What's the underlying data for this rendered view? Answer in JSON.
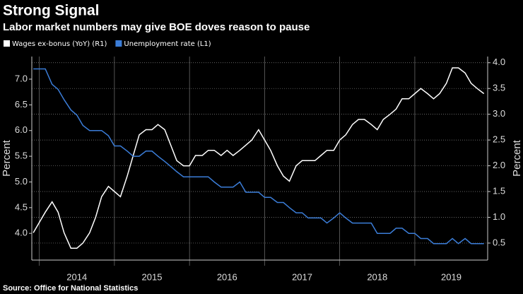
{
  "chart_data": {
    "type": "line",
    "title": "Strong Signal",
    "subtitle": "Labor market numbers may give BOE doves reason to pause",
    "source": "Source: Office for National Statistics",
    "ylabel": "Percent",
    "y2label": "Percent",
    "x": [
      2013.92,
      2014.0,
      2014.08,
      2014.17,
      2014.25,
      2014.33,
      2014.42,
      2014.5,
      2014.58,
      2014.67,
      2014.75,
      2014.83,
      2014.92,
      2015.0,
      2015.08,
      2015.17,
      2015.25,
      2015.33,
      2015.42,
      2015.5,
      2015.58,
      2015.67,
      2015.75,
      2015.83,
      2015.92,
      2016.0,
      2016.08,
      2016.17,
      2016.25,
      2016.33,
      2016.42,
      2016.5,
      2016.58,
      2016.67,
      2016.75,
      2016.83,
      2016.92,
      2017.0,
      2017.08,
      2017.17,
      2017.25,
      2017.33,
      2017.42,
      2017.5,
      2017.58,
      2017.67,
      2017.75,
      2017.83,
      2017.92,
      2018.0,
      2018.08,
      2018.17,
      2018.25,
      2018.33,
      2018.42,
      2018.5,
      2018.58,
      2018.67,
      2018.75,
      2018.83,
      2018.92,
      2019.0,
      2019.08,
      2019.17,
      2019.25,
      2019.33,
      2019.42,
      2019.5,
      2019.58,
      2019.67,
      2019.75,
      2019.83,
      2019.92
    ],
    "series": [
      {
        "name": "Wages ex-bonus (YoY) (R1)",
        "color": "#ffffff",
        "axis": "y2",
        "values": [
          0.7,
          0.9,
          1.1,
          1.3,
          1.1,
          0.7,
          0.4,
          0.4,
          0.5,
          0.7,
          1.0,
          1.4,
          1.6,
          1.5,
          1.4,
          1.8,
          2.2,
          2.6,
          2.7,
          2.7,
          2.8,
          2.7,
          2.4,
          2.1,
          2.0,
          2.0,
          2.2,
          2.2,
          2.3,
          2.3,
          2.2,
          2.3,
          2.2,
          2.3,
          2.4,
          2.5,
          2.7,
          2.5,
          2.3,
          2.0,
          1.8,
          1.7,
          2.0,
          2.1,
          2.1,
          2.1,
          2.2,
          2.3,
          2.3,
          2.5,
          2.6,
          2.8,
          2.9,
          2.9,
          2.8,
          2.7,
          2.9,
          3.0,
          3.1,
          3.3,
          3.3,
          3.4,
          3.5,
          3.4,
          3.3,
          3.4,
          3.6,
          3.9,
          3.9,
          3.8,
          3.6,
          3.5,
          3.4
        ]
      },
      {
        "name": "Unemployment rate (L1)",
        "color": "#3b7dd8",
        "values": [
          7.2,
          7.2,
          7.2,
          6.9,
          6.8,
          6.6,
          6.4,
          6.3,
          6.1,
          6.0,
          6.0,
          6.0,
          5.9,
          5.7,
          5.7,
          5.6,
          5.5,
          5.5,
          5.6,
          5.6,
          5.5,
          5.4,
          5.3,
          5.2,
          5.1,
          5.1,
          5.1,
          5.1,
          5.1,
          5.0,
          4.9,
          4.9,
          4.9,
          5.0,
          4.8,
          4.8,
          4.8,
          4.7,
          4.7,
          4.6,
          4.6,
          4.5,
          4.4,
          4.4,
          4.3,
          4.3,
          4.3,
          4.2,
          4.3,
          4.4,
          4.3,
          4.2,
          4.2,
          4.2,
          4.2,
          4.0,
          4.0,
          4.0,
          4.1,
          4.1,
          4.0,
          4.0,
          3.9,
          3.9,
          3.8,
          3.8,
          3.8,
          3.9,
          3.8,
          3.9,
          3.8,
          3.8,
          3.8
        ]
      }
    ],
    "xlim": [
      2013.9,
      2019.97
    ],
    "xticks": [
      2014,
      2015,
      2016,
      2017,
      2018,
      2019
    ],
    "ylim": [
      3.48,
      7.44
    ],
    "yticks": [
      {
        "value": 4.0,
        "label": "4.0"
      },
      4.5,
      {
        "value": 5.0,
        "label": "5.0"
      },
      5.5,
      {
        "value": 6.0,
        "label": "6.0"
      },
      6.5,
      {
        "value": 7.0,
        "label": "7.0"
      }
    ],
    "y2lim": [
      0.17,
      4.12
    ],
    "y2ticks": [
      0.5,
      {
        "value": 1.0,
        "label": "1.0"
      },
      1.5,
      {
        "value": 2.0,
        "label": "2.0"
      },
      2.5,
      {
        "value": 3.0,
        "label": "3.0"
      },
      3.5,
      {
        "value": 4.0,
        "label": "4.0"
      }
    ],
    "grid": true
  }
}
